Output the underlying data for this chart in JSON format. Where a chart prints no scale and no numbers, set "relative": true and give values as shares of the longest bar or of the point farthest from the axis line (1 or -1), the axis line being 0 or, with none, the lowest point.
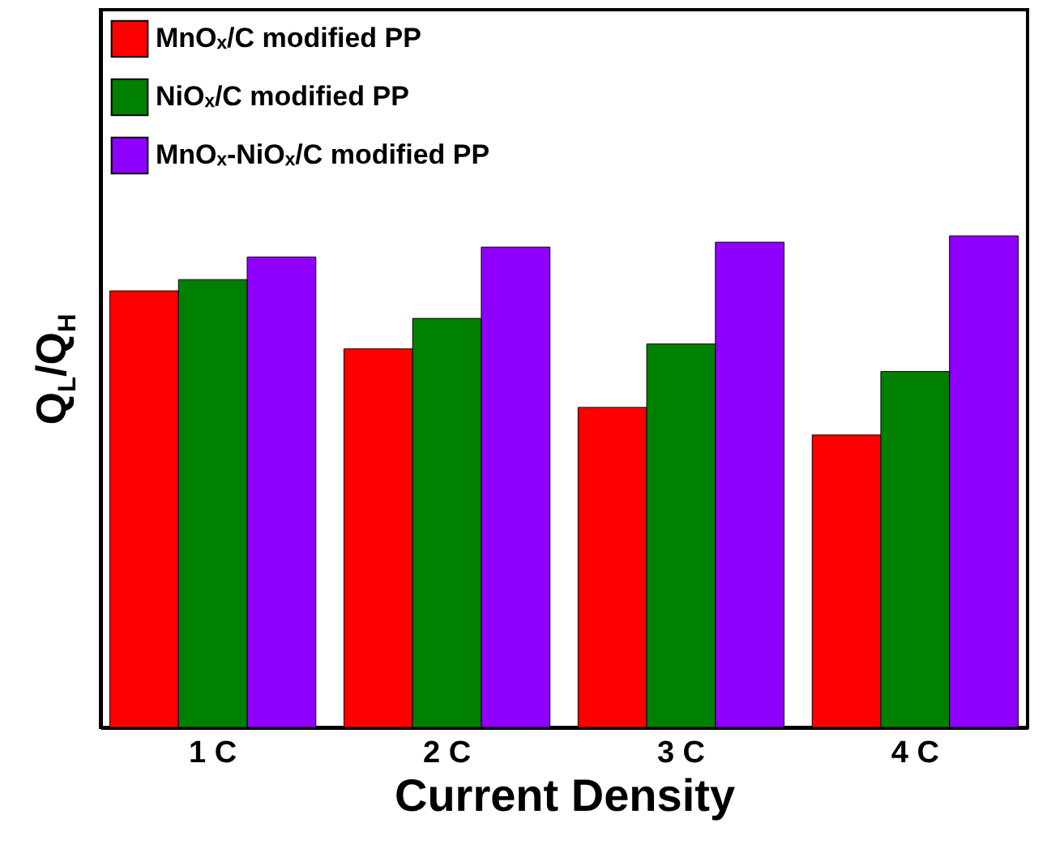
{
  "chart_data": {
    "type": "bar",
    "relative": true,
    "xlabel": "Current Density",
    "ylabel": "Q$_{L}$/Q$_{H}$",
    "categories": [
      "1 C",
      "2 C",
      "3 C",
      "4 C"
    ],
    "series": [
      {
        "name": "MnOₓ/C modified PP",
        "color": "#ff0000",
        "values": [
          0.888,
          0.77,
          0.651,
          0.595
        ]
      },
      {
        "name": "NiOₓ/C modified PP",
        "color": "#008000",
        "values": [
          0.911,
          0.832,
          0.78,
          0.724
        ]
      },
      {
        "name": "MnOₓ-NiOₓ/C modified PP",
        "color": "#8f00ff",
        "values": [
          0.957,
          0.977,
          0.987,
          1
        ]
      }
    ],
    "legend": "top left",
    "grid": false
  }
}
